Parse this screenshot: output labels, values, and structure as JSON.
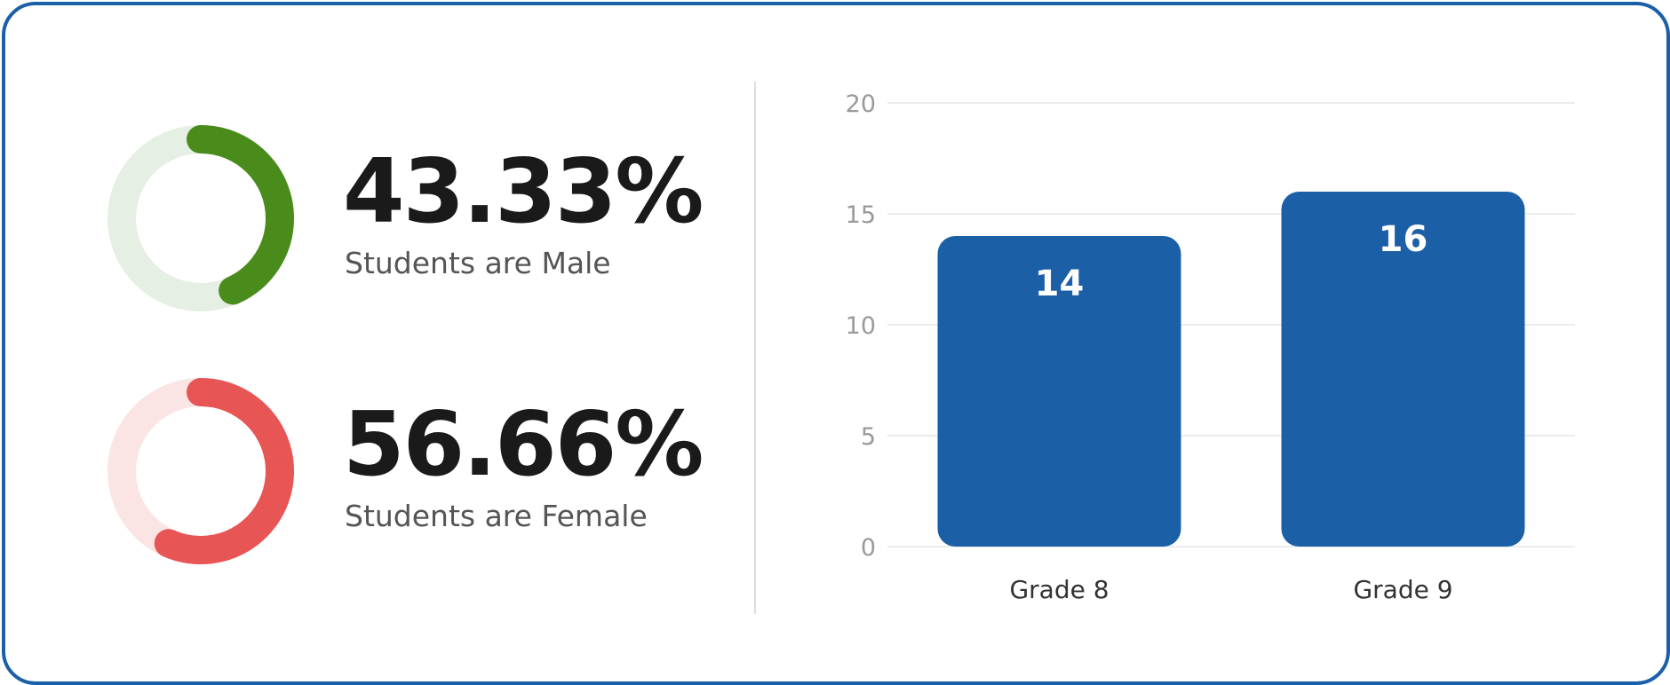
{
  "stats": [
    {
      "value": "43.33%",
      "label": "Students are Male",
      "fraction": 0.4333,
      "color": "#4a8c1c",
      "track_color": "#e6efe4"
    },
    {
      "value": "56.66%",
      "label": "Students are Female",
      "fraction": 0.5666,
      "color": "#e85555",
      "track_color": "#fbe4e4"
    }
  ],
  "chart_data": {
    "type": "bar",
    "categories": [
      "Grade 8",
      "Grade 9"
    ],
    "values": [
      14,
      16
    ],
    "ylim": [
      0,
      20
    ],
    "yticks": [
      0,
      5,
      10,
      15,
      20
    ],
    "grid": true,
    "bar_color": "#1b5fa7",
    "title": "",
    "xlabel": "",
    "ylabel": ""
  }
}
